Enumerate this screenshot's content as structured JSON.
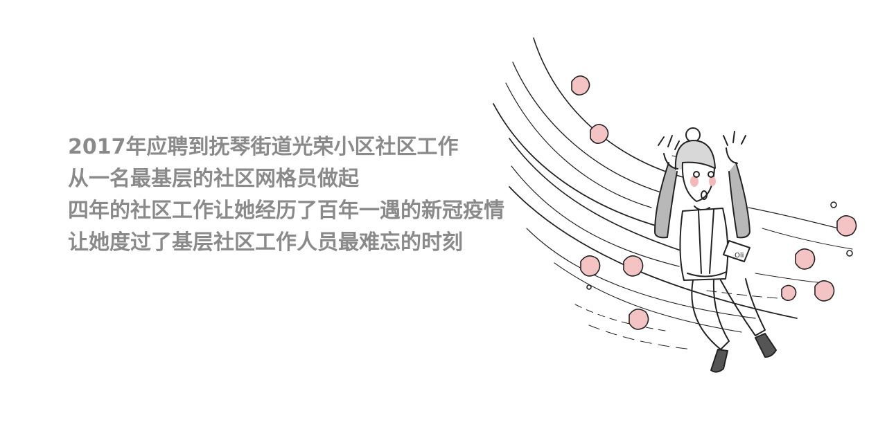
{
  "caption": {
    "lines": [
      "2017年应聘到抚琴街道光荣小区社区工作",
      "从一名最基层的社区网格员做起",
      "四年的社区工作让她经历了百年一遇的新冠疫情",
      "让她度过了基层社区工作人员最难忘的时刻"
    ]
  },
  "illustration": {
    "badge_text": "Oli"
  },
  "colors": {
    "background": "#ffffff",
    "text": "#8a8a8a",
    "ink": "#222222",
    "blush": "#f3b8b8",
    "petal": "#f4c4c4"
  }
}
